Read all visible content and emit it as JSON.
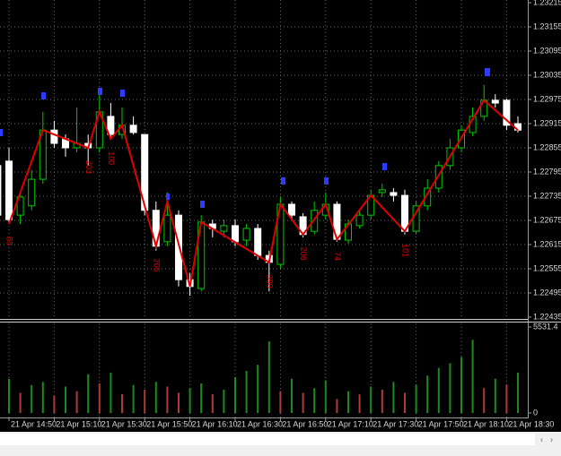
{
  "chart_data": {
    "type": "candlestick",
    "categories": [
      null,
      "21 Apr 14:50",
      null,
      null,
      null,
      "21 Apr 15:10",
      null,
      null,
      null,
      "21 Apr 15:30",
      null,
      null,
      null,
      "21 Apr 15:50",
      null,
      null,
      null,
      "21 Apr 16:10",
      null,
      null,
      null,
      "21 Apr 16:30",
      null,
      null,
      null,
      "21 Apr 16:50",
      null,
      null,
      null,
      "21 Apr 17:10",
      null,
      null,
      null,
      "21 Apr 17:30",
      null,
      null,
      null,
      "21 Apr 17:50",
      null,
      null,
      null,
      "21 Apr 18:10",
      null,
      null,
      null,
      "21 Apr 18:30",
      null
    ],
    "open": [
      1.22811,
      1.22822,
      1.22688,
      1.22711,
      1.22777,
      1.22899,
      1.22877,
      1.22855,
      1.22866,
      1.22855,
      1.22933,
      1.22888,
      1.22911,
      1.22888,
      1.227,
      1.22622,
      1.22688,
      1.22528,
      1.22506,
      1.22666,
      1.22648,
      1.22662,
      1.22626,
      1.22655,
      1.22588,
      1.22566,
      1.22715,
      1.22684,
      1.22648,
      1.22688,
      1.22715,
      1.22626,
      1.22662,
      1.22688,
      1.22744,
      1.22744,
      1.22737,
      1.22648,
      1.22711,
      1.22755,
      1.22811,
      1.22855,
      1.22893,
      1.22933,
      1.22973,
      1.22973,
      1.22915
    ],
    "high": [
      1.22888,
      1.22855,
      1.22744,
      1.228,
      1.22944,
      1.22922,
      1.22888,
      1.22955,
      1.22888,
      1.22999,
      1.22966,
      1.22955,
      1.22933,
      1.22888,
      1.22722,
      1.22744,
      1.227,
      1.22544,
      1.22688,
      1.22677,
      1.22677,
      1.22677,
      1.22666,
      1.22666,
      1.226,
      1.22733,
      1.22722,
      1.22693,
      1.22722,
      1.22744,
      1.22722,
      1.22677,
      1.227,
      1.22751,
      1.22766,
      1.22755,
      1.22751,
      1.22722,
      1.22777,
      1.22822,
      1.22877,
      1.22911,
      1.22955,
      1.23011,
      1.22988,
      1.22977,
      1.22933
    ],
    "low": [
      1.22677,
      1.22666,
      1.22666,
      1.227,
      1.22766,
      1.22855,
      1.22833,
      1.22844,
      1.22811,
      1.22844,
      1.22877,
      1.22877,
      1.22888,
      1.22688,
      1.226,
      1.22611,
      1.22511,
      1.22488,
      1.22499,
      1.22633,
      1.22633,
      1.22611,
      1.22611,
      1.22577,
      1.22499,
      1.22555,
      1.22677,
      1.22633,
      1.2264,
      1.22677,
      1.22622,
      1.22617,
      1.22655,
      1.22677,
      1.22733,
      1.22722,
      1.2264,
      1.2264,
      1.227,
      1.22744,
      1.228,
      1.22844,
      1.22884,
      1.22922,
      1.22955,
      1.22899,
      1.22893
    ],
    "close": [
      1.22688,
      1.22677,
      1.22733,
      1.22777,
      1.22899,
      1.22866,
      1.22855,
      1.22866,
      1.22855,
      1.22944,
      1.22888,
      1.22911,
      1.22893,
      1.227,
      1.22611,
      1.22688,
      1.22528,
      1.22511,
      1.22671,
      1.22655,
      1.22662,
      1.22622,
      1.22655,
      1.22588,
      1.22571,
      1.22715,
      1.22688,
      1.2264,
      1.227,
      1.22715,
      1.22628,
      1.22666,
      1.22688,
      1.22737,
      1.22751,
      1.22737,
      1.22648,
      1.22711,
      1.22755,
      1.22811,
      1.22855,
      1.22899,
      1.22933,
      1.22973,
      1.22966,
      1.22911,
      1.22899
    ],
    "bull_color": "#00c800",
    "bear_color": "#ffffff",
    "ylim": [
      1.22435,
      1.23215
    ],
    "yticks": [
      1.23215,
      1.23155,
      1.23095,
      1.23035,
      1.22975,
      1.22915,
      1.22855,
      1.22795,
      1.22735,
      1.22675,
      1.22615,
      1.22555,
      1.22495,
      1.22435
    ],
    "grid": true,
    "zigzag": {
      "color": "#e00000",
      "bars": [
        1,
        4,
        8,
        9,
        10,
        11,
        14,
        15,
        17,
        18,
        24,
        25,
        27,
        29,
        30,
        33,
        36,
        43,
        46
      ],
      "values": [
        1.22666,
        1.22899,
        1.22855,
        1.22944,
        1.22877,
        1.22911,
        1.22611,
        1.22722,
        1.22511,
        1.22671,
        1.22571,
        1.22715,
        1.2264,
        1.22715,
        1.22628,
        1.22737,
        1.22648,
        1.22973,
        1.22899
      ],
      "labels": [
        "85",
        null,
        "203",
        null,
        "100",
        null,
        "205",
        null,
        null,
        null,
        "390",
        null,
        "206",
        null,
        "74",
        null,
        "101",
        null,
        null
      ]
    },
    "volume": {
      "values": [
        1500,
        2200,
        1300,
        1800,
        2000,
        1100,
        1700,
        1400,
        2500,
        1900,
        2600,
        1200,
        1800,
        1500,
        2000,
        1700,
        1300,
        1600,
        1900,
        1200,
        1500,
        2300,
        2700,
        3100,
        4600,
        1400,
        2200,
        1300,
        1600,
        2100,
        900,
        1400,
        1200,
        1700,
        1500,
        2000,
        1300,
        1800,
        2400,
        2900,
        3200,
        3600,
        4700,
        1600,
        2200,
        1800,
        2600
      ],
      "up_color": "#1a8c1a",
      "down_color": "#b03a3a",
      "ylim": [
        0,
        5531.4
      ],
      "yticks": [
        0,
        5531.4
      ]
    }
  }
}
